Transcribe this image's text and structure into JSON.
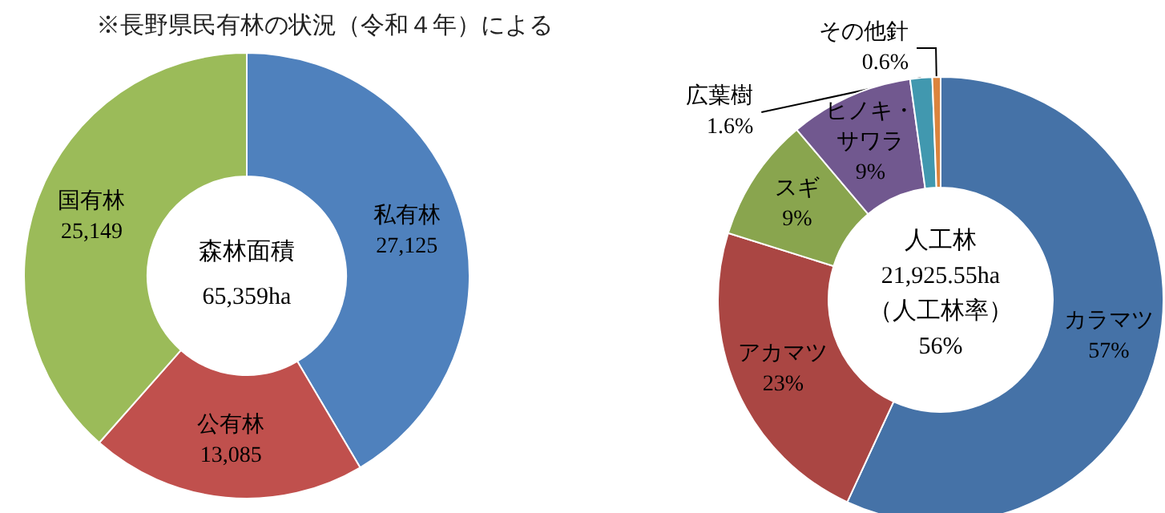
{
  "chart_data": [
    {
      "type": "donut",
      "title": "※長野県民有林の状況（令和４年）による",
      "categories": [
        "私有林",
        "公有林",
        "国有林"
      ],
      "values": [
        27125,
        13085,
        25149
      ],
      "value_labels": [
        "27,125",
        "13,085",
        "25,149"
      ],
      "colors": [
        "#4f81bd",
        "#c0504d",
        "#9bbb59"
      ],
      "annotations": [
        "森林面積",
        "65,359ha"
      ]
    },
    {
      "type": "donut",
      "categories": [
        "カラマツ",
        "アカマツ",
        "スギ",
        "ヒノキ・サワラ",
        "広葉樹",
        "その他針"
      ],
      "values": [
        57,
        23,
        9,
        9,
        1.6,
        0.6
      ],
      "value_labels": [
        "57%",
        "23%",
        "9%",
        "9%",
        "1.6%",
        "0.6%"
      ],
      "colors": [
        "#4572a7",
        "#aa4643",
        "#89a54e",
        "#71588f",
        "#4198af",
        "#db843d"
      ],
      "annotations": [
        "人工林",
        "21,925.55ha",
        "（人工林率）",
        "56%"
      ]
    }
  ]
}
